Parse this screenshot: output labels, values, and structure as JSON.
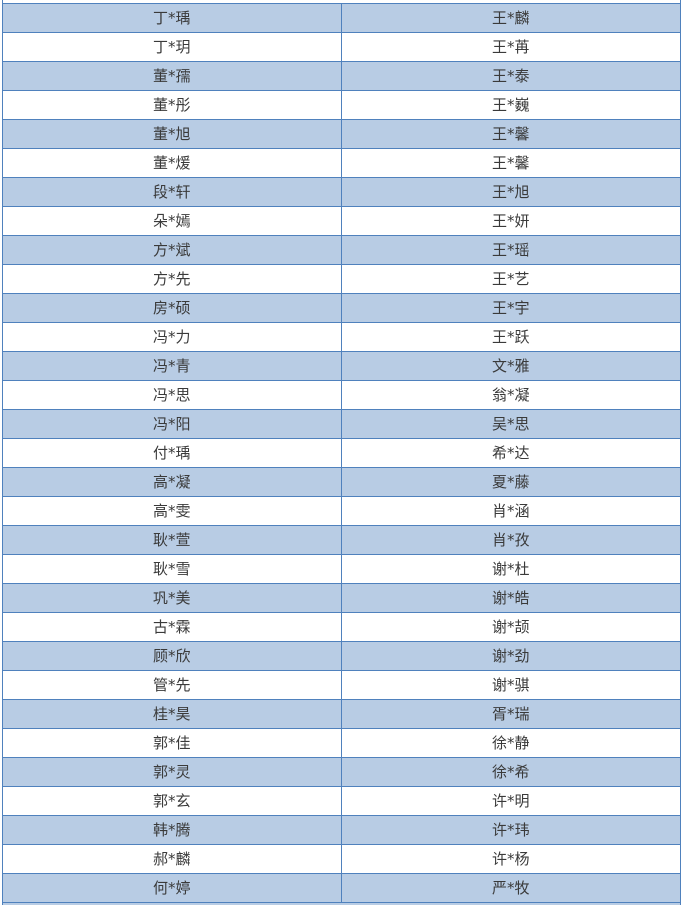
{
  "table": {
    "description": "masked-name-list",
    "columns": [
      {
        "id": "left"
      },
      {
        "id": "right"
      }
    ],
    "rows": [
      {
        "left": "丁*瑀",
        "right": "王*麟"
      },
      {
        "left": "丁*玥",
        "right": "王*苒"
      },
      {
        "left": "董*孺",
        "right": "王*泰"
      },
      {
        "left": "董*彤",
        "right": "王*巍"
      },
      {
        "left": "董*旭",
        "right": "王*馨"
      },
      {
        "left": "董*煖",
        "right": "王*馨"
      },
      {
        "left": "段*轩",
        "right": "王*旭"
      },
      {
        "left": "朵*嫣",
        "right": "王*妍"
      },
      {
        "left": "方*斌",
        "right": "王*瑶"
      },
      {
        "left": "方*先",
        "right": "王*艺"
      },
      {
        "left": "房*硕",
        "right": "王*宇"
      },
      {
        "left": "冯*力",
        "right": "王*跃"
      },
      {
        "left": "冯*青",
        "right": "文*雅"
      },
      {
        "left": "冯*思",
        "right": "翁*凝"
      },
      {
        "left": "冯*阳",
        "right": "吴*思"
      },
      {
        "left": "付*瑀",
        "right": "希*达"
      },
      {
        "left": "高*凝",
        "right": "夏*藤"
      },
      {
        "left": "高*雯",
        "right": "肖*涵"
      },
      {
        "left": "耿*萱",
        "right": "肖*孜"
      },
      {
        "left": "耿*雪",
        "right": "谢*杜"
      },
      {
        "left": "巩*美",
        "right": "谢*皓"
      },
      {
        "left": "古*霖",
        "right": "谢*颉"
      },
      {
        "left": "顾*欣",
        "right": "谢*劲"
      },
      {
        "left": "管*先",
        "right": "谢*骐"
      },
      {
        "left": "桂*昊",
        "right": "胥*瑞"
      },
      {
        "left": "郭*佳",
        "right": "徐*静"
      },
      {
        "left": "郭*灵",
        "right": "徐*希"
      },
      {
        "left": "郭*玄",
        "right": "许*明"
      },
      {
        "left": "韩*腾",
        "right": "许*玮"
      },
      {
        "left": "郝*麟",
        "right": "许*杨"
      },
      {
        "left": "何*婷",
        "right": "严*牧"
      }
    ],
    "colors": {
      "row_fill": "#ffffff",
      "row_alt_fill": "#b8cce4",
      "border": "#4f81bd",
      "text": "#3a3a3a"
    }
  }
}
